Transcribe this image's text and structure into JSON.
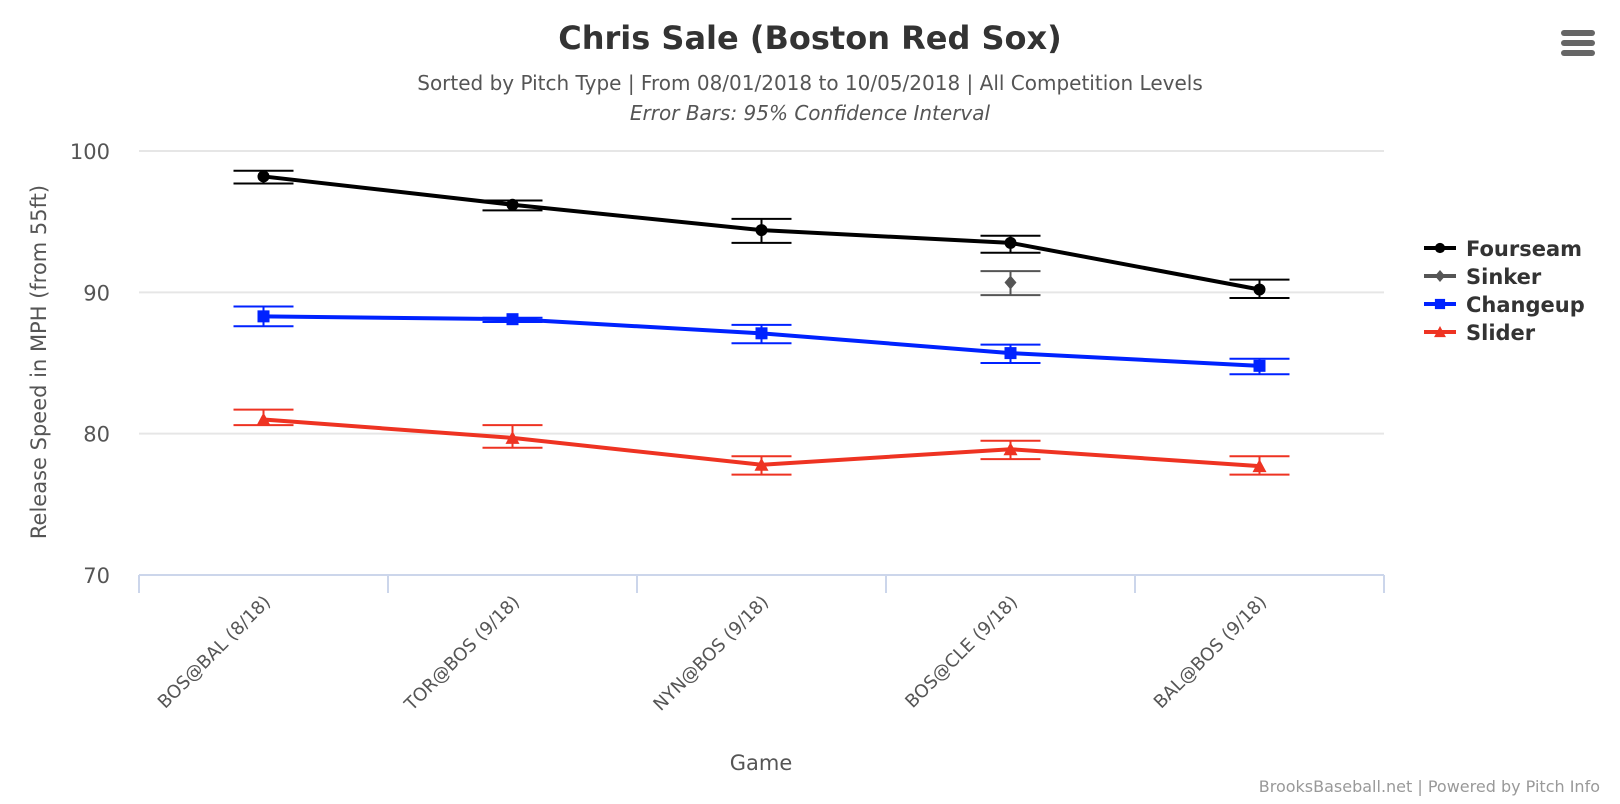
{
  "chart_data": {
    "type": "line",
    "title": "Chris Sale (Boston Red Sox)",
    "subtitle": "Sorted by Pitch Type | From 08/01/2018 to 10/05/2018 | All Competition Levels",
    "subtitle2": "Error Bars: 95% Confidence Interval",
    "xlabel": "Game",
    "ylabel": "Release Speed in MPH (from 55ft)",
    "categories": [
      "BOS@BAL (8/18)",
      "TOR@BOS (9/18)",
      "NYN@BOS (9/18)",
      "BOS@CLE (9/18)",
      "BAL@BOS (9/18)"
    ],
    "ylim": [
      70,
      100
    ],
    "yticks": [
      70,
      80,
      90,
      100
    ],
    "grid": true,
    "legend_position": "right",
    "series": [
      {
        "name": "Fourseam",
        "color": "#000000",
        "marker": "circle",
        "values": [
          98.2,
          96.2,
          94.4,
          93.5,
          90.2
        ],
        "error_low": [
          97.7,
          95.8,
          93.5,
          92.8,
          89.6
        ],
        "error_high": [
          98.6,
          96.5,
          95.2,
          94.0,
          90.9
        ]
      },
      {
        "name": "Sinker",
        "color": "#555555",
        "marker": "diamond",
        "values": [
          null,
          null,
          null,
          90.7,
          null
        ],
        "error_low": [
          null,
          null,
          null,
          89.8,
          null
        ],
        "error_high": [
          null,
          null,
          null,
          91.5,
          null
        ]
      },
      {
        "name": "Changeup",
        "color": "#0022ff",
        "marker": "square",
        "values": [
          88.3,
          88.1,
          87.1,
          85.7,
          84.8
        ],
        "error_low": [
          87.6,
          87.9,
          86.4,
          85.0,
          84.2
        ],
        "error_high": [
          89.0,
          88.2,
          87.7,
          86.3,
          85.3
        ]
      },
      {
        "name": "Slider",
        "color": "#ee3322",
        "marker": "triangle",
        "values": [
          81.0,
          79.7,
          77.8,
          78.9,
          77.7
        ],
        "error_low": [
          80.6,
          79.0,
          77.1,
          78.2,
          77.1
        ],
        "error_high": [
          81.7,
          80.6,
          78.4,
          79.5,
          78.4
        ]
      }
    ],
    "credits": "BrooksBaseball.net | Powered by Pitch Info"
  },
  "menu": {
    "icon": "hamburger-menu-icon"
  }
}
